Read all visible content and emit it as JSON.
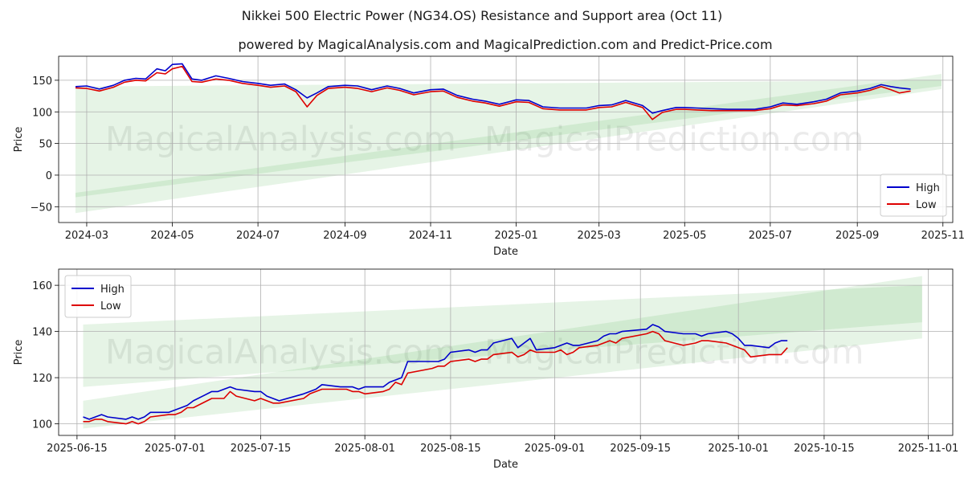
{
  "title": "Nikkei 500 Electric Power (NG34.OS) Resistance and Support area (Oct 11)",
  "subtitle": "powered by MagicalAnalysis.com and MagicalPrediction.com and Predict-Price.com",
  "watermarks": [
    "MagicalAnalysis.com",
    "MagicalPrediction.com"
  ],
  "colors": {
    "high": "#0000cc",
    "low": "#dd0000",
    "band": "#4caf50"
  },
  "chart_data": [
    {
      "type": "line",
      "xlabel": "Date",
      "ylabel": "Price",
      "ylim": [
        -75,
        188
      ],
      "xlim": [
        "2024-02-10",
        "2025-11-08"
      ],
      "grid": true,
      "legend": "lower-right",
      "x_ticks": [
        "2024-03",
        "2024-05",
        "2024-07",
        "2024-09",
        "2024-11",
        "2025-01",
        "2025-03",
        "2025-05",
        "2025-07",
        "2025-09",
        "2025-11"
      ],
      "x_tick_dates": [
        "2024-03-01",
        "2024-05-01",
        "2024-07-01",
        "2024-09-01",
        "2024-11-01",
        "2025-01-01",
        "2025-03-01",
        "2025-05-01",
        "2025-07-01",
        "2025-09-01",
        "2025-11-01"
      ],
      "y_ticks": [
        "−50",
        "0",
        "50",
        "100",
        "150"
      ],
      "y_tick_values": [
        -50,
        0,
        50,
        100,
        150
      ],
      "bands": [
        {
          "start": "2024-02-22",
          "end": "2025-10-31",
          "upper": [
            140,
            150
          ],
          "lower": [
            -35,
            141
          ]
        },
        {
          "start": "2024-02-22",
          "end": "2025-10-31",
          "upper": [
            -28,
            160
          ],
          "lower": [
            -60,
            136
          ]
        }
      ],
      "series": [
        {
          "name": "High",
          "dates": [
            "2024-02-22",
            "2024-03-01",
            "2024-03-10",
            "2024-03-20",
            "2024-03-28",
            "2024-04-05",
            "2024-04-12",
            "2024-04-20",
            "2024-04-26",
            "2024-05-01",
            "2024-05-08",
            "2024-05-15",
            "2024-05-22",
            "2024-06-01",
            "2024-06-10",
            "2024-06-20",
            "2024-07-01",
            "2024-07-10",
            "2024-07-20",
            "2024-07-28",
            "2024-08-05",
            "2024-08-12",
            "2024-08-20",
            "2024-09-01",
            "2024-09-10",
            "2024-09-20",
            "2024-10-01",
            "2024-10-10",
            "2024-10-20",
            "2024-11-01",
            "2024-11-10",
            "2024-11-20",
            "2024-12-01",
            "2024-12-10",
            "2024-12-20",
            "2025-01-01",
            "2025-01-10",
            "2025-01-20",
            "2025-02-01",
            "2025-02-10",
            "2025-02-20",
            "2025-03-01",
            "2025-03-10",
            "2025-03-20",
            "2025-04-01",
            "2025-04-08",
            "2025-04-15",
            "2025-04-25",
            "2025-05-01",
            "2025-05-10",
            "2025-05-20",
            "2025-06-01",
            "2025-06-10",
            "2025-06-20",
            "2025-07-01",
            "2025-07-10",
            "2025-07-20",
            "2025-08-01",
            "2025-08-10",
            "2025-08-20",
            "2025-09-01",
            "2025-09-10",
            "2025-09-18",
            "2025-09-25",
            "2025-10-01",
            "2025-10-09"
          ],
          "values": [
            140,
            141,
            136,
            142,
            150,
            153,
            152,
            168,
            165,
            175,
            176,
            152,
            150,
            157,
            153,
            148,
            145,
            142,
            144,
            135,
            122,
            130,
            140,
            142,
            141,
            135,
            141,
            137,
            130,
            135,
            136,
            126,
            120,
            117,
            112,
            119,
            118,
            108,
            106,
            106,
            106,
            110,
            111,
            118,
            110,
            98,
            102,
            107,
            107,
            106,
            105,
            104,
            104,
            104,
            108,
            114,
            112,
            116,
            120,
            130,
            133,
            137,
            143,
            140,
            138,
            136
          ]
        },
        {
          "name": "Low",
          "dates": [
            "2024-02-22",
            "2024-03-01",
            "2024-03-10",
            "2024-03-20",
            "2024-03-28",
            "2024-04-05",
            "2024-04-12",
            "2024-04-20",
            "2024-04-26",
            "2024-05-01",
            "2024-05-08",
            "2024-05-15",
            "2024-05-22",
            "2024-06-01",
            "2024-06-10",
            "2024-06-20",
            "2024-07-01",
            "2024-07-10",
            "2024-07-20",
            "2024-07-28",
            "2024-08-05",
            "2024-08-12",
            "2024-08-20",
            "2024-09-01",
            "2024-09-10",
            "2024-09-20",
            "2024-10-01",
            "2024-10-10",
            "2024-10-20",
            "2024-11-01",
            "2024-11-10",
            "2024-11-20",
            "2024-12-01",
            "2024-12-10",
            "2024-12-20",
            "2025-01-01",
            "2025-01-10",
            "2025-01-20",
            "2025-02-01",
            "2025-02-10",
            "2025-02-20",
            "2025-03-01",
            "2025-03-10",
            "2025-03-20",
            "2025-04-01",
            "2025-04-08",
            "2025-04-15",
            "2025-04-25",
            "2025-05-01",
            "2025-05-10",
            "2025-05-20",
            "2025-06-01",
            "2025-06-10",
            "2025-06-20",
            "2025-07-01",
            "2025-07-10",
            "2025-07-20",
            "2025-08-01",
            "2025-08-10",
            "2025-08-20",
            "2025-09-01",
            "2025-09-10",
            "2025-09-18",
            "2025-09-25",
            "2025-10-01",
            "2025-10-09"
          ],
          "values": [
            138,
            137,
            133,
            139,
            147,
            150,
            149,
            162,
            160,
            168,
            172,
            148,
            147,
            152,
            150,
            145,
            142,
            139,
            141,
            132,
            108,
            126,
            137,
            139,
            137,
            132,
            138,
            134,
            127,
            132,
            133,
            123,
            117,
            114,
            109,
            116,
            115,
            105,
            103,
            103,
            103,
            107,
            108,
            115,
            107,
            88,
            99,
            104,
            104,
            103,
            102,
            102,
            102,
            102,
            105,
            111,
            110,
            113,
            117,
            127,
            130,
            134,
            140,
            135,
            130,
            133
          ]
        }
      ]
    },
    {
      "type": "line",
      "xlabel": "Date",
      "ylabel": "Price",
      "ylim": [
        95,
        167
      ],
      "xlim": [
        "2025-06-12",
        "2025-11-05"
      ],
      "grid": true,
      "legend": "upper-left",
      "x_ticks": [
        "2025-06-15",
        "2025-07-01",
        "2025-07-15",
        "2025-08-01",
        "2025-08-15",
        "2025-09-01",
        "2025-09-15",
        "2025-10-01",
        "2025-10-15",
        "2025-11-01"
      ],
      "x_tick_dates": [
        "2025-06-15",
        "2025-07-01",
        "2025-07-15",
        "2025-08-01",
        "2025-08-15",
        "2025-09-01",
        "2025-09-15",
        "2025-10-01",
        "2025-10-15",
        "2025-11-01"
      ],
      "y_ticks": [
        "100",
        "120",
        "140",
        "160"
      ],
      "y_tick_values": [
        100,
        120,
        140,
        160
      ],
      "bands": [
        {
          "start": "2025-06-16",
          "end": "2025-10-31",
          "upper": [
            143,
            160
          ],
          "lower": [
            116,
            144
          ]
        },
        {
          "start": "2025-06-16",
          "end": "2025-10-31",
          "upper": [
            110,
            164
          ],
          "lower": [
            98,
            137
          ]
        }
      ],
      "series": [
        {
          "name": "High",
          "dates": [
            "2025-06-16",
            "2025-06-17",
            "2025-06-18",
            "2025-06-19",
            "2025-06-20",
            "2025-06-23",
            "2025-06-24",
            "2025-06-25",
            "2025-06-26",
            "2025-06-27",
            "2025-06-30",
            "2025-07-01",
            "2025-07-02",
            "2025-07-03",
            "2025-07-04",
            "2025-07-07",
            "2025-07-08",
            "2025-07-09",
            "2025-07-10",
            "2025-07-11",
            "2025-07-14",
            "2025-07-15",
            "2025-07-16",
            "2025-07-17",
            "2025-07-18",
            "2025-07-22",
            "2025-07-23",
            "2025-07-24",
            "2025-07-25",
            "2025-07-28",
            "2025-07-29",
            "2025-07-30",
            "2025-07-31",
            "2025-08-01",
            "2025-08-04",
            "2025-08-05",
            "2025-08-06",
            "2025-08-07",
            "2025-08-08",
            "2025-08-12",
            "2025-08-13",
            "2025-08-14",
            "2025-08-15",
            "2025-08-18",
            "2025-08-19",
            "2025-08-20",
            "2025-08-21",
            "2025-08-22",
            "2025-08-25",
            "2025-08-26",
            "2025-08-27",
            "2025-08-28",
            "2025-08-29",
            "2025-09-01",
            "2025-09-02",
            "2025-09-03",
            "2025-09-04",
            "2025-09-05",
            "2025-09-08",
            "2025-09-09",
            "2025-09-10",
            "2025-09-11",
            "2025-09-12",
            "2025-09-16",
            "2025-09-17",
            "2025-09-18",
            "2025-09-19",
            "2025-09-22",
            "2025-09-24",
            "2025-09-25",
            "2025-09-26",
            "2025-09-29",
            "2025-09-30",
            "2025-10-01",
            "2025-10-02",
            "2025-10-03",
            "2025-10-06",
            "2025-10-07",
            "2025-10-08",
            "2025-10-09"
          ],
          "values": [
            103,
            102,
            103,
            104,
            103,
            102,
            103,
            102,
            103,
            105,
            105,
            106,
            107,
            108,
            110,
            114,
            114,
            115,
            116,
            115,
            114,
            114,
            112,
            111,
            110,
            113,
            114,
            115,
            117,
            116,
            116,
            116,
            115,
            116,
            116,
            118,
            119,
            120,
            127,
            127,
            127,
            128,
            131,
            132,
            131,
            132,
            132,
            135,
            137,
            133,
            135,
            137,
            132,
            133,
            134,
            135,
            134,
            134,
            136,
            138,
            139,
            139,
            140,
            141,
            143,
            142,
            140,
            139,
            139,
            138,
            139,
            140,
            139,
            137,
            134,
            134,
            133,
            135,
            136,
            136
          ]
        },
        {
          "name": "Low",
          "dates": [
            "2025-06-16",
            "2025-06-17",
            "2025-06-18",
            "2025-06-19",
            "2025-06-20",
            "2025-06-23",
            "2025-06-24",
            "2025-06-25",
            "2025-06-26",
            "2025-06-27",
            "2025-06-30",
            "2025-07-01",
            "2025-07-02",
            "2025-07-03",
            "2025-07-04",
            "2025-07-07",
            "2025-07-08",
            "2025-07-09",
            "2025-07-10",
            "2025-07-11",
            "2025-07-14",
            "2025-07-15",
            "2025-07-16",
            "2025-07-17",
            "2025-07-18",
            "2025-07-22",
            "2025-07-23",
            "2025-07-24",
            "2025-07-25",
            "2025-07-28",
            "2025-07-29",
            "2025-07-30",
            "2025-07-31",
            "2025-08-01",
            "2025-08-04",
            "2025-08-05",
            "2025-08-06",
            "2025-08-07",
            "2025-08-08",
            "2025-08-12",
            "2025-08-13",
            "2025-08-14",
            "2025-08-15",
            "2025-08-18",
            "2025-08-19",
            "2025-08-20",
            "2025-08-21",
            "2025-08-22",
            "2025-08-25",
            "2025-08-26",
            "2025-08-27",
            "2025-08-28",
            "2025-08-29",
            "2025-09-01",
            "2025-09-02",
            "2025-09-03",
            "2025-09-04",
            "2025-09-05",
            "2025-09-08",
            "2025-09-09",
            "2025-09-10",
            "2025-09-11",
            "2025-09-12",
            "2025-09-16",
            "2025-09-17",
            "2025-09-18",
            "2025-09-19",
            "2025-09-22",
            "2025-09-24",
            "2025-09-25",
            "2025-09-26",
            "2025-09-29",
            "2025-09-30",
            "2025-10-01",
            "2025-10-02",
            "2025-10-03",
            "2025-10-06",
            "2025-10-07",
            "2025-10-08",
            "2025-10-09"
          ],
          "values": [
            101,
            101,
            102,
            102,
            101,
            100,
            101,
            100,
            101,
            103,
            104,
            104,
            105,
            107,
            107,
            111,
            111,
            111,
            114,
            112,
            110,
            111,
            110,
            109,
            109,
            111,
            113,
            114,
            115,
            115,
            115,
            114,
            114,
            113,
            114,
            115,
            118,
            117,
            122,
            124,
            125,
            125,
            127,
            128,
            127,
            128,
            128,
            130,
            131,
            129,
            130,
            132,
            131,
            131,
            132,
            130,
            131,
            133,
            134,
            135,
            136,
            135,
            137,
            139,
            140,
            139,
            136,
            134,
            135,
            136,
            136,
            135,
            134,
            133,
            132,
            129,
            130,
            130,
            130,
            133
          ]
        }
      ]
    }
  ]
}
